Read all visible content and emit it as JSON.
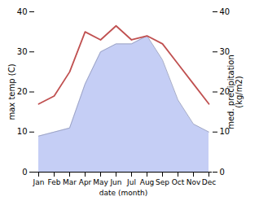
{
  "chart_data": {
    "type": "line",
    "xlabel": "date (month)",
    "ylabel": "max temp (C)",
    "y2label": "med. precipitation\n(kg/m2)",
    "categories": [
      "Jan",
      "Feb",
      "Mar",
      "Apr",
      "May",
      "Jun",
      "Jul",
      "Aug",
      "Sep",
      "Oct",
      "Nov",
      "Dec"
    ],
    "series": [
      {
        "type": "line",
        "color": "#c05050",
        "values": [
          17,
          19,
          25,
          35,
          33,
          36.5,
          33,
          34,
          32,
          27,
          22,
          17
        ]
      },
      {
        "type": "area",
        "color": "#c5cef5",
        "axis": "y2",
        "values": [
          9,
          10,
          11,
          22,
          30,
          32,
          32,
          34,
          28,
          18,
          12,
          10
        ]
      }
    ],
    "ylim": [
      0,
      40
    ],
    "yticks": [
      0,
      10,
      20,
      30,
      40
    ],
    "y2lim": [
      0,
      40
    ],
    "y2ticks": [
      0,
      10,
      20,
      30,
      40
    ],
    "grid": false
  }
}
